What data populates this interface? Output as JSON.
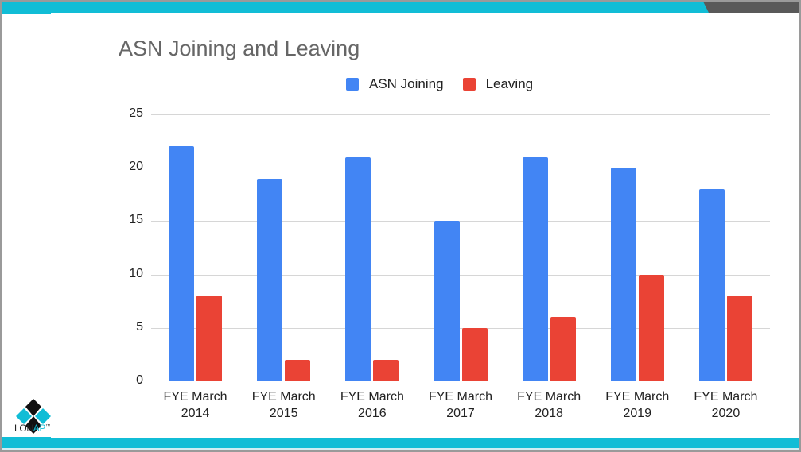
{
  "slide": {
    "title": "ASN Joining and Leaving",
    "logo": {
      "icon": "lonap-diamond-logo",
      "text_main": "LON",
      "text_accent": "AP",
      "trademark": "™"
    },
    "colors": {
      "accent_cyan": "#11bdd6",
      "dark_gray": "#595959",
      "series_joining": "#4285f4",
      "series_leaving": "#ea4335"
    }
  },
  "legend": [
    {
      "label": "ASN Joining",
      "color": "#4285f4"
    },
    {
      "label": "Leaving",
      "color": "#ea4335"
    }
  ],
  "y_ticks": [
    "25",
    "20",
    "15",
    "10",
    "5",
    "0"
  ],
  "x_labels": [
    {
      "line1": "FYE March",
      "line2": "2014"
    },
    {
      "line1": "FYE March",
      "line2": "2015"
    },
    {
      "line1": "FYE March",
      "line2": "2016"
    },
    {
      "line1": "FYE March",
      "line2": "2017"
    },
    {
      "line1": "FYE March",
      "line2": "2018"
    },
    {
      "line1": "FYE March",
      "line2": "2019"
    },
    {
      "line1": "FYE March",
      "line2": "2020"
    }
  ],
  "chart_data": {
    "type": "bar",
    "title": "ASN Joining and Leaving",
    "categories": [
      "FYE March 2014",
      "FYE March 2015",
      "FYE March 2016",
      "FYE March 2017",
      "FYE March 2018",
      "FYE March 2019",
      "FYE March 2020"
    ],
    "series": [
      {
        "name": "ASN Joining",
        "color": "#4285f4",
        "values": [
          22,
          19,
          21,
          15,
          21,
          20,
          18
        ]
      },
      {
        "name": "Leaving",
        "color": "#ea4335",
        "values": [
          8,
          2,
          2,
          5,
          6,
          10,
          8
        ]
      }
    ],
    "xlabel": "",
    "ylabel": "",
    "ylim": [
      0,
      25
    ],
    "yticks": [
      0,
      5,
      10,
      15,
      20,
      25
    ],
    "grid": true,
    "legend_position": "top"
  }
}
